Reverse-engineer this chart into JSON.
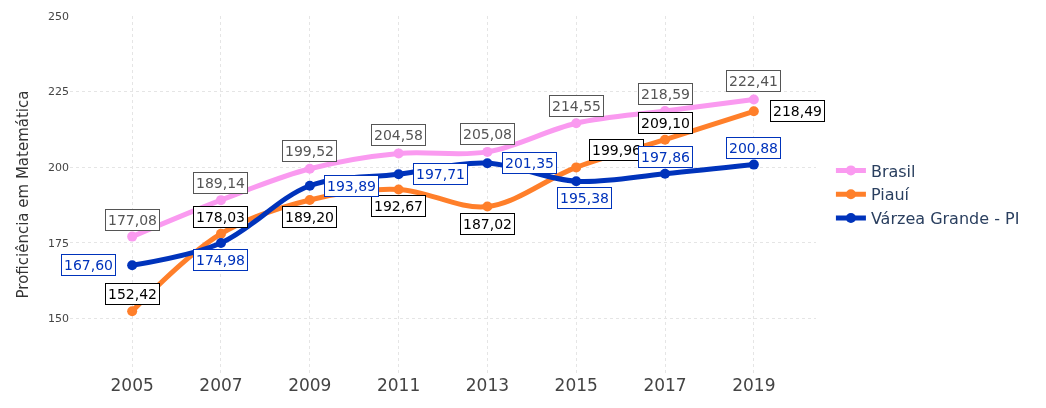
{
  "chart_data": {
    "type": "line",
    "ylabel": "Proficiência em Matemática",
    "x": [
      2005,
      2007,
      2009,
      2011,
      2013,
      2015,
      2017,
      2019
    ],
    "xlim": [
      2003.6,
      2020.4
    ],
    "xticks": [
      2005,
      2007,
      2009,
      2011,
      2013,
      2015,
      2017,
      2019
    ],
    "ylim": [
      132,
      250
    ],
    "yticks": [
      150,
      175,
      200,
      225,
      250
    ],
    "series": [
      {
        "name": "Brasil",
        "color": "#fa9af0",
        "values": [
          177.08,
          189.14,
          199.52,
          204.58,
          205.08,
          214.55,
          218.59,
          222.41
        ],
        "value_labels": [
          "177,08",
          "189,14",
          "199,52",
          "204,58",
          "205,08",
          "214,55",
          "218,59",
          "222,41"
        ]
      },
      {
        "name": "Piauí",
        "color": "#ff7f2a",
        "values": [
          152.42,
          178.03,
          189.2,
          192.67,
          187.02,
          199.96,
          209.1,
          218.49
        ],
        "value_labels": [
          "152,42",
          "178,03",
          "189,20",
          "192,67",
          "187,02",
          "199,96",
          "209,10",
          "218,49"
        ]
      },
      {
        "name": "Várzea Grande - PI",
        "color": "#0033bb",
        "values": [
          167.6,
          174.98,
          193.89,
          197.71,
          201.35,
          195.38,
          197.86,
          200.88
        ],
        "value_labels": [
          "167,60",
          "174,98",
          "193,89",
          "197,71",
          "201,35",
          "195,38",
          "197,86",
          "200,88"
        ]
      }
    ],
    "grid": true,
    "legend": "right",
    "marker": "circle",
    "line_style": "solid"
  }
}
